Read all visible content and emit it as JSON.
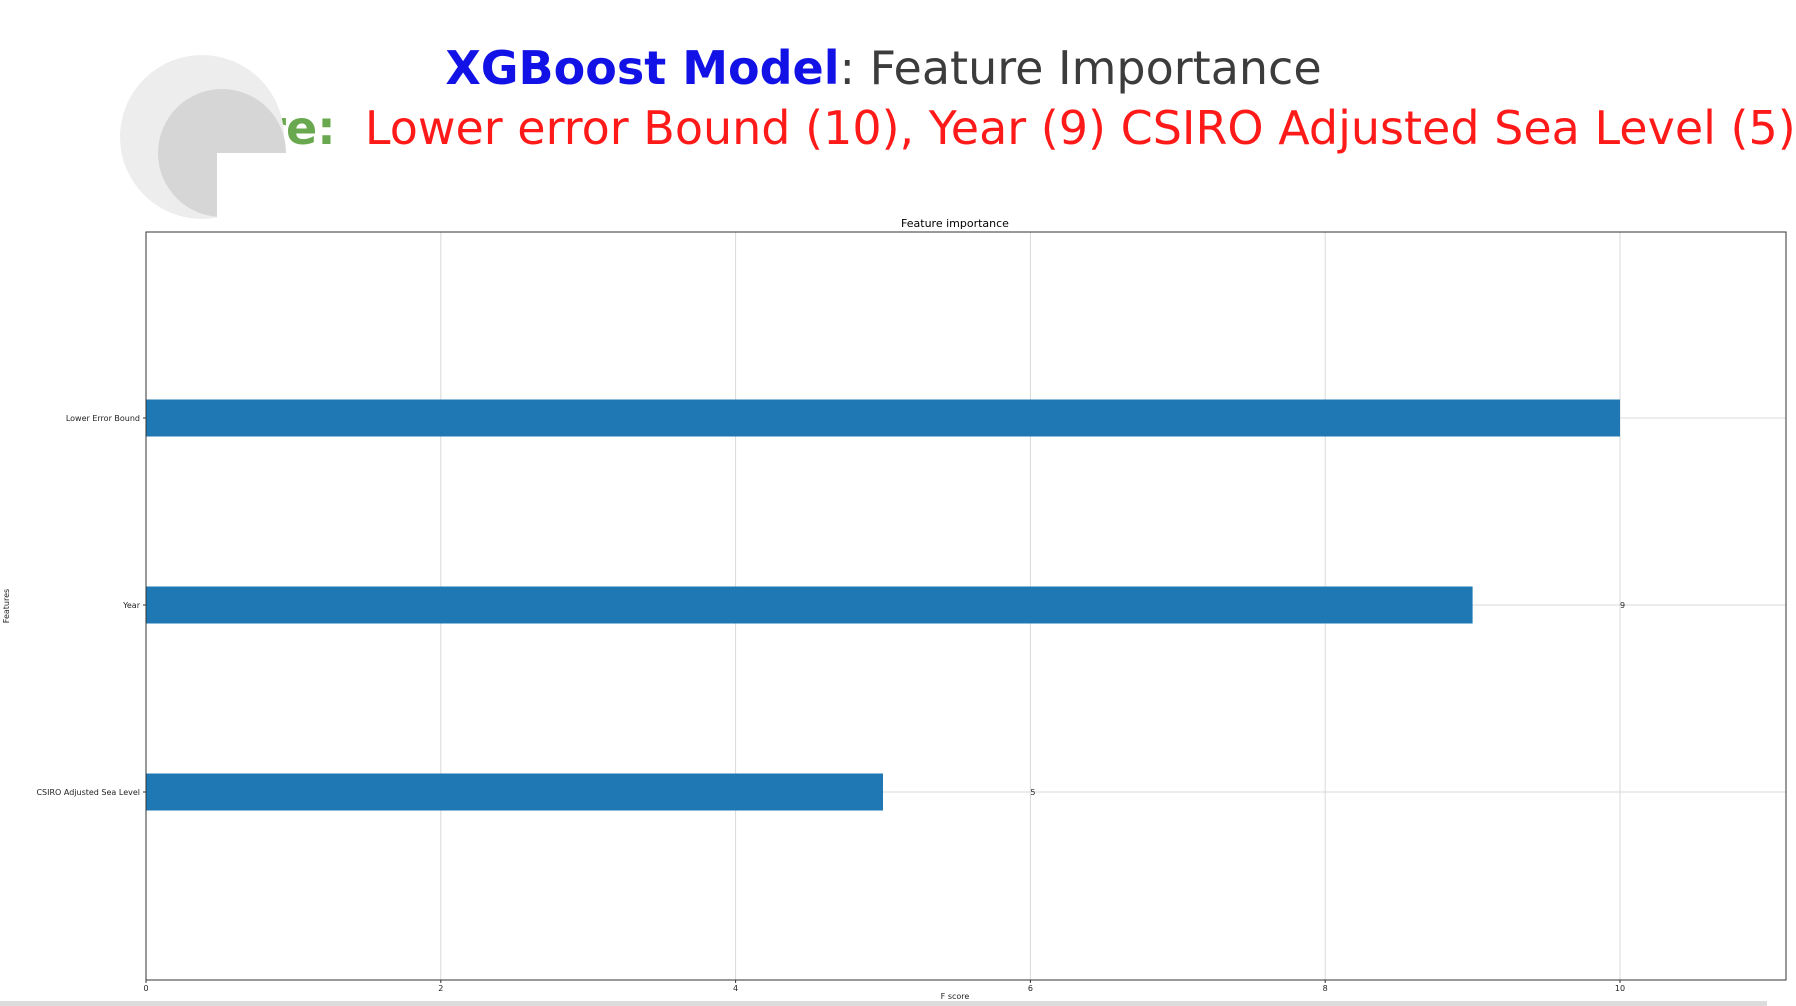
{
  "slide": {
    "title_model": "XGBoost Model",
    "title_rest": ": Feature Importance",
    "subtitle_label": "F-score:",
    "subtitle_scores": "Lower error Bound (10), Year (9) CSIRO Adjusted Sea Level (5)"
  },
  "chart_data": {
    "type": "bar",
    "orientation": "horizontal",
    "title": "Feature importance",
    "xlabel": "F score",
    "ylabel": "Features",
    "categories": [
      "Lower Error Bound",
      "Year",
      "CSIRO Adjusted Sea Level"
    ],
    "values": [
      10,
      9,
      5
    ],
    "data_labels": [
      "",
      "9",
      "5"
    ],
    "xlim": [
      0,
      11
    ],
    "xticks": [
      0,
      2,
      4,
      6,
      8,
      10
    ],
    "grid": true,
    "bar_color": "#1f77b4"
  }
}
